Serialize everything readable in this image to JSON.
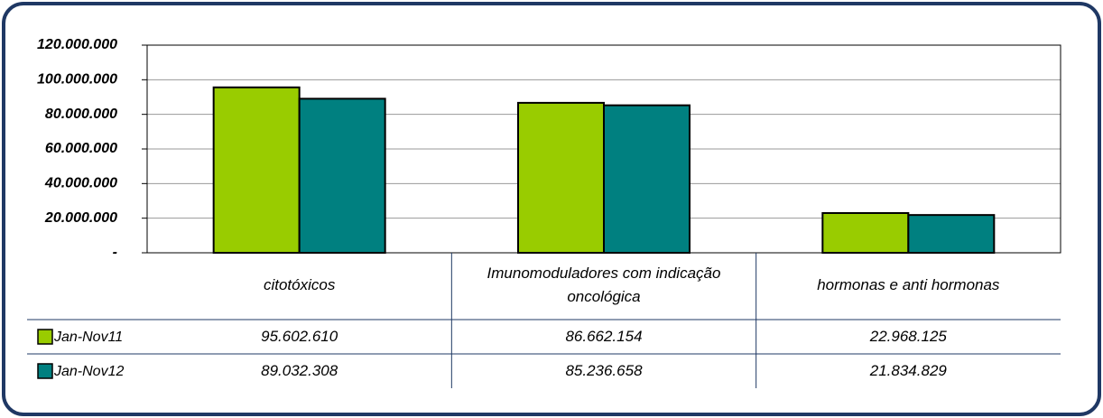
{
  "chart_data": {
    "type": "bar",
    "categories": [
      "citotóxicos",
      "Imunomoduladores com indicação oncológica",
      "hormonas e anti hormonas"
    ],
    "series": [
      {
        "name": "Jan-Nov11",
        "color": "#99cc00",
        "values": [
          95602610,
          86662154,
          22968125
        ],
        "value_labels": [
          "95.602.610",
          "86.662.154",
          "22.968.125"
        ]
      },
      {
        "name": "Jan-Nov12",
        "color": "#008080",
        "values": [
          89032308,
          85236658,
          21834829
        ],
        "value_labels": [
          "89.032.308",
          "85.236.658",
          "21.834.829"
        ]
      }
    ],
    "ylim": [
      0,
      120000000
    ],
    "yticks": [
      {
        "value": 0,
        "label": "-"
      },
      {
        "value": 20000000,
        "label": "20.000.000"
      },
      {
        "value": 40000000,
        "label": "40.000.000"
      },
      {
        "value": 60000000,
        "label": "60.000.000"
      },
      {
        "value": 80000000,
        "label": "80.000.000"
      },
      {
        "value": 100000000,
        "label": "100.000.000"
      },
      {
        "value": 120000000,
        "label": "120.000.000"
      }
    ],
    "grid": true
  }
}
